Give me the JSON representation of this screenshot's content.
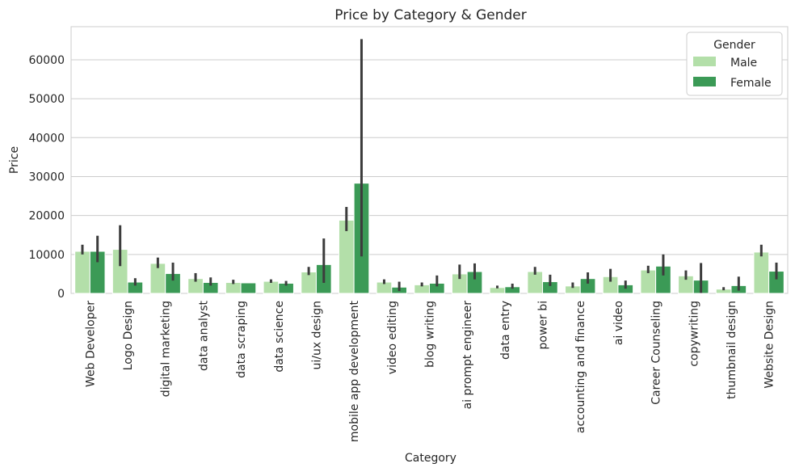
{
  "chart_data": {
    "type": "bar",
    "title": "Price by Category & Gender",
    "xlabel": "Category",
    "ylabel": "Price",
    "ylim": [
      0,
      68500
    ],
    "yticks": [
      0,
      10000,
      20000,
      30000,
      40000,
      50000,
      60000
    ],
    "grid": "horizontal",
    "legend_position": "top-right",
    "legend_title": "Gender",
    "categories": [
      "Web Developer",
      "Logo Design",
      "digital marketing",
      "data analyst",
      "data scraping",
      "data science",
      "ui/ux design",
      "mobile app development",
      "video editing",
      "blog writing",
      "ai prompt engineer",
      "data entry",
      "power bi",
      "accounting and finance",
      "ai video",
      "Career Counseling",
      "copywriting",
      "thumbnail design",
      "Website Design"
    ],
    "series": [
      {
        "name": "Male",
        "color": "#b3dfa9",
        "values": [
          10800,
          11300,
          7700,
          3800,
          2800,
          3100,
          5500,
          18800,
          2900,
          2200,
          5000,
          1500,
          5600,
          1900,
          4300,
          6000,
          4500,
          1100,
          10600
        ],
        "err_low": [
          10000,
          7000,
          6500,
          3000,
          2400,
          2700,
          4700,
          16000,
          2400,
          1800,
          3700,
          1300,
          4800,
          1400,
          3000,
          5200,
          3500,
          800,
          9500
        ],
        "err_high": [
          12500,
          17500,
          9200,
          5200,
          3500,
          3600,
          6800,
          22200,
          3600,
          2800,
          7400,
          2000,
          6800,
          2800,
          6300,
          7100,
          5900,
          1600,
          12500
        ]
      },
      {
        "name": "Female",
        "color": "#3b9a56",
        "values": [
          10800,
          2900,
          5100,
          2800,
          2700,
          2600,
          7400,
          28300,
          1600,
          2600,
          5600,
          1700,
          3000,
          3800,
          2200,
          7000,
          3400,
          2000,
          5700
        ],
        "err_low": [
          8000,
          2000,
          3300,
          2000,
          2700,
          2000,
          2700,
          9500,
          600,
          1800,
          3600,
          1200,
          1900,
          2500,
          1200,
          4600,
          100,
          700,
          3600
        ],
        "err_high": [
          14800,
          3900,
          7900,
          4100,
          2700,
          3200,
          14100,
          65300,
          3000,
          4600,
          7700,
          2500,
          4800,
          5400,
          3300,
          10000,
          7800,
          4300,
          7900
        ]
      }
    ]
  }
}
